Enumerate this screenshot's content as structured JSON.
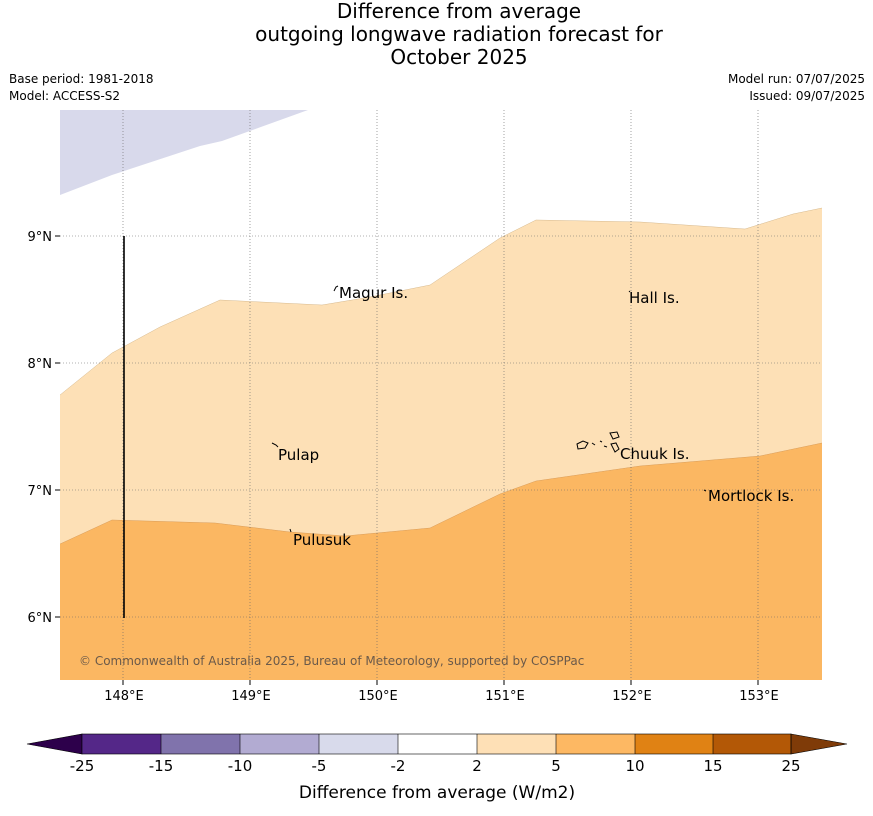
{
  "title": {
    "line1": "Difference from average",
    "line2": "outgoing longwave radiation forecast for",
    "line3": "October 2025"
  },
  "info_left": {
    "base_period": "Base period: 1981-2018",
    "model": "Model: ACCESS-S2"
  },
  "info_right": {
    "model_run": "Model run: 07/07/2025",
    "issued": "Issued: 09/07/2025"
  },
  "map": {
    "lat_labels": [
      "9°N",
      "8°N",
      "7°N",
      "6°N"
    ],
    "lon_labels": [
      "148°E",
      "149°E",
      "150°E",
      "151°E",
      "152°E",
      "153°E"
    ],
    "place_labels": {
      "magur": "Magur Is.",
      "hall": "Hall Is.",
      "pulap": "Pulap",
      "chuuk": "Chuuk Is.",
      "mortlock": "Mortlock Is.",
      "pulusuk": "Pulusuk"
    },
    "copyright": "© Commonwealth of Australia 2025, Bureau of Meteorology, supported by COSPPac",
    "fill_colors": {
      "minus5_to_minus2": "#d8d9eb",
      "2_to_5": "#fde0b6",
      "5_to_10": "#fbb762"
    }
  },
  "colorbar": {
    "label": "Difference from average (W/m2)",
    "ticks": [
      "-25",
      "-15",
      "-10",
      "-5",
      "-2",
      "2",
      "5",
      "10",
      "15",
      "25"
    ],
    "colors": {
      "under": "#2d004b",
      "c1": "#542788",
      "c2": "#8073ac",
      "c3": "#b2abd2",
      "c4": "#d8daeb",
      "c5": "#ffffff",
      "c6": "#fee0b6",
      "c7": "#fdb863",
      "c8": "#e08214",
      "c9": "#b35806",
      "over": "#7f3b08"
    }
  }
}
